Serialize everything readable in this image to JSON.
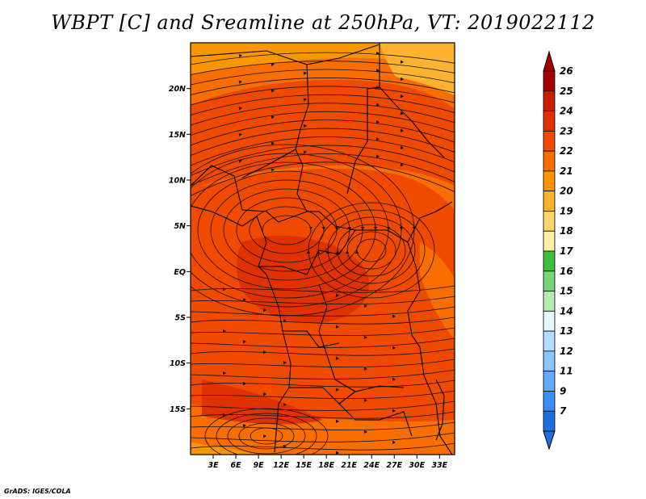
{
  "title": "WBPT [C] and Sreamline at 250hPa, VT: 2019022112",
  "credit": "GrADS: IGES/COLA",
  "x_axis": {
    "labels": [
      "3E",
      "6E",
      "9E",
      "12E",
      "15E",
      "18E",
      "21E",
      "24E",
      "27E",
      "30E",
      "33E"
    ],
    "values": [
      3,
      6,
      9,
      12,
      15,
      18,
      21,
      24,
      27,
      30,
      33
    ],
    "range": [
      0,
      35
    ]
  },
  "y_axis": {
    "labels": [
      "20N",
      "15N",
      "10N",
      "5N",
      "EQ",
      "5S",
      "10S",
      "15S"
    ],
    "values": [
      20,
      15,
      10,
      5,
      0,
      -5,
      -10,
      -15
    ],
    "range": [
      -20,
      25
    ]
  },
  "colorbar": {
    "labels": [
      "26",
      "25",
      "24",
      "23",
      "22",
      "21",
      "20",
      "19",
      "18",
      "17",
      "16",
      "15",
      "14",
      "13",
      "12",
      "11",
      "9",
      "7"
    ],
    "colors": [
      "#a50000",
      "#c81e00",
      "#e03200",
      "#f04a00",
      "#f86e00",
      "#fc9600",
      "#fdb330",
      "#fed36a",
      "#fef0a8",
      "#3cbd3c",
      "#78d678",
      "#b4ecb4",
      "#e6f7ff",
      "#b4dcff",
      "#8cc6ff",
      "#64aaff",
      "#3c8ef6",
      "#1e6edc"
    ]
  },
  "field_colors": {
    "c22": "#f86e00",
    "c23": "#f04a00",
    "c24": "#e03200",
    "c21": "#fc9600",
    "c20": "#fdb330"
  }
}
